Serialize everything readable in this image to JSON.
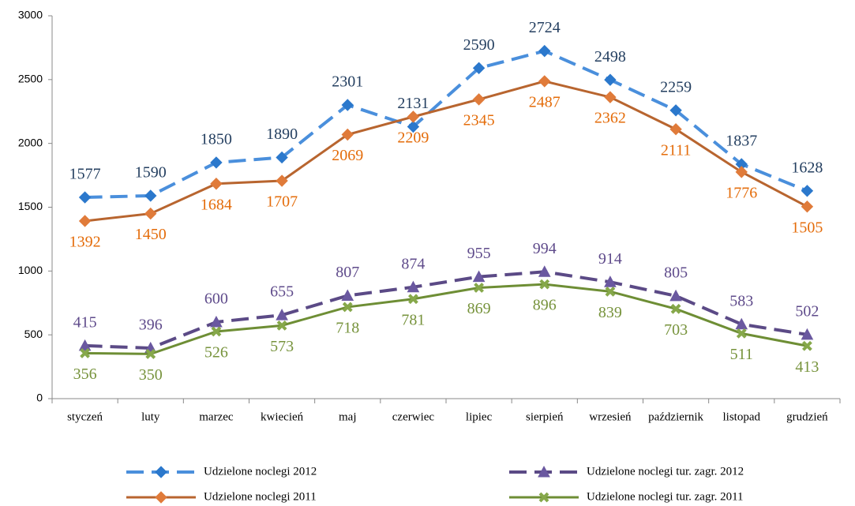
{
  "chart_data": {
    "type": "line",
    "categories": [
      "styczeń",
      "luty",
      "marzec",
      "kwiecień",
      "maj",
      "czerwiec",
      "lipiec",
      "sierpień",
      "wrzesień",
      "październik",
      "listopad",
      "grudzień"
    ],
    "series": [
      {
        "name": "Udzielone noclegi 2012",
        "color": "#4a8fdc",
        "marker_color": "#2b78cc",
        "label_color": "#243f60",
        "dash": true,
        "marker": "diamond",
        "label_side": "above",
        "values": [
          1577,
          1590,
          1850,
          1890,
          2301,
          2131,
          2590,
          2724,
          2498,
          2259,
          1837,
          1628
        ]
      },
      {
        "name": "Udzielone noclegi 2011",
        "color": "#b8652f",
        "marker_color": "#e07b3a",
        "label_color": "#e46c0a",
        "dash": false,
        "marker": "diamond",
        "label_side": "below",
        "values": [
          1392,
          1450,
          1684,
          1707,
          2069,
          2209,
          2345,
          2487,
          2362,
          2111,
          1776,
          1505
        ]
      },
      {
        "name": "Udzielone noclegi tur. zagr. 2012",
        "color": "#5b4a86",
        "marker_color": "#6a58a0",
        "label_color": "#5f4b8b",
        "dash": true,
        "marker": "triangle",
        "label_side": "above",
        "values": [
          415,
          396,
          600,
          655,
          807,
          874,
          955,
          994,
          914,
          805,
          583,
          502
        ]
      },
      {
        "name": "Udzielone noclegi tur. zagr. 2011",
        "color": "#6e8e35",
        "marker_color": "#86a84a",
        "label_color": "#77933c",
        "dash": false,
        "marker": "x",
        "label_side": "below",
        "values": [
          356,
          350,
          526,
          573,
          718,
          781,
          869,
          896,
          839,
          703,
          511,
          413
        ]
      }
    ],
    "ylim": [
      0,
      3000
    ],
    "yticks": [
      0,
      500,
      1000,
      1500,
      2000,
      2500,
      3000
    ],
    "grid": false,
    "legend": "bottom"
  }
}
